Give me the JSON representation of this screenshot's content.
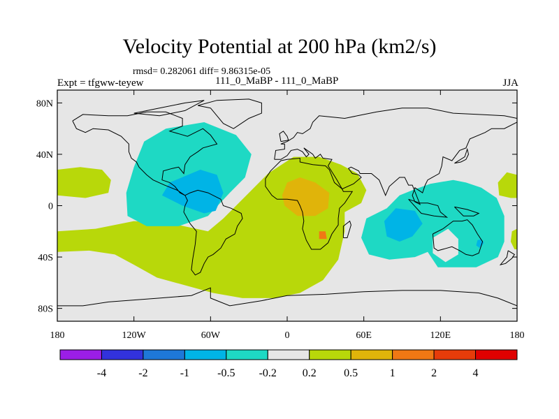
{
  "header": {
    "title": "Velocity Potential at 200 hPa (km2/s)",
    "stats": "rmsd= 0.282061 diff= 9.86315e-05",
    "experiment": "Expt = tfgww-teyew",
    "case": "111_0_MaBP - 111_0_MaBP",
    "season": "JJA"
  },
  "chart_data": {
    "type": "heatmap",
    "title": "Velocity Potential at 200 hPa (km2/s)",
    "xlabel": "",
    "ylabel": "",
    "xlim": [
      -180,
      180
    ],
    "ylim": [
      -90,
      90
    ],
    "x_ticks": [
      {
        "value": -180,
        "label": "180"
      },
      {
        "value": -120,
        "label": "120W"
      },
      {
        "value": -60,
        "label": "60W"
      },
      {
        "value": 0,
        "label": "0"
      },
      {
        "value": 60,
        "label": "60E"
      },
      {
        "value": 120,
        "label": "120E"
      },
      {
        "value": 180,
        "label": "180"
      }
    ],
    "y_ticks": [
      {
        "value": 80,
        "label": "80N"
      },
      {
        "value": 40,
        "label": "40N"
      },
      {
        "value": 0,
        "label": "0"
      },
      {
        "value": -40,
        "label": "40S"
      },
      {
        "value": -80,
        "label": "80S"
      }
    ],
    "colorbar": {
      "labels": [
        "-4",
        "-2",
        "-1",
        "-0.5",
        "-0.2",
        "0.2",
        "0.5",
        "1",
        "2",
        "4"
      ],
      "colors": [
        "#9b1ee6",
        "#3232dc",
        "#1e78d8",
        "#00b4e6",
        "#1ed9c4",
        "#e6e6e6",
        "#b8d80a",
        "#e0b40a",
        "#f07814",
        "#e63c0a",
        "#e00000"
      ]
    },
    "regions": [
      {
        "name": "pos-a",
        "color": "#b8d80a",
        "poly": [
          [
            -180,
            28
          ],
          [
            -162,
            30
          ],
          [
            -145,
            28
          ],
          [
            -138,
            20
          ],
          [
            -140,
            10
          ],
          [
            -158,
            6
          ],
          [
            -180,
            8
          ]
        ]
      },
      {
        "name": "pos-b",
        "color": "#b8d80a",
        "poly": [
          [
            -180,
            -20
          ],
          [
            -150,
            -18
          ],
          [
            -120,
            -12
          ],
          [
            -90,
            -14
          ],
          [
            -62,
            -20
          ],
          [
            -50,
            -10
          ],
          [
            -40,
            0
          ],
          [
            -30,
            10
          ],
          [
            -15,
            25
          ],
          [
            5,
            38
          ],
          [
            25,
            38
          ],
          [
            42,
            32
          ],
          [
            55,
            25
          ],
          [
            62,
            12
          ],
          [
            58,
            2
          ],
          [
            45,
            -5
          ],
          [
            45,
            -20
          ],
          [
            40,
            -42
          ],
          [
            28,
            -58
          ],
          [
            10,
            -68
          ],
          [
            -10,
            -72
          ],
          [
            -35,
            -72
          ],
          [
            -58,
            -68
          ],
          [
            -80,
            -62
          ],
          [
            -102,
            -56
          ],
          [
            -120,
            -46
          ],
          [
            -135,
            -38
          ],
          [
            -155,
            -35
          ],
          [
            -180,
            -36
          ]
        ]
      },
      {
        "name": "pos-c",
        "color": "#b8d80a",
        "poly": [
          [
            180,
            24
          ],
          [
            172,
            26
          ],
          [
            165,
            18
          ],
          [
            166,
            8
          ],
          [
            175,
            6
          ],
          [
            180,
            6
          ]
        ]
      },
      {
        "name": "pos-d",
        "color": "#b8d80a",
        "poly": [
          [
            180,
            -18
          ],
          [
            176,
            -20
          ],
          [
            175,
            -28
          ],
          [
            178,
            -34
          ],
          [
            180,
            -34
          ]
        ]
      },
      {
        "name": "neg-a",
        "color": "#1ed9c4",
        "poly": [
          [
            -112,
            50
          ],
          [
            -95,
            60
          ],
          [
            -65,
            65
          ],
          [
            -40,
            55
          ],
          [
            -28,
            40
          ],
          [
            -33,
            22
          ],
          [
            -45,
            10
          ],
          [
            -62,
            -8
          ],
          [
            -85,
            -16
          ],
          [
            -110,
            -16
          ],
          [
            -125,
            -8
          ],
          [
            -126,
            10
          ],
          [
            -120,
            30
          ]
        ]
      },
      {
        "name": "neg-b",
        "color": "#1ed9c4",
        "poly": [
          [
            62,
            -10
          ],
          [
            78,
            -2
          ],
          [
            88,
            8
          ],
          [
            98,
            12
          ],
          [
            112,
            17
          ],
          [
            130,
            20
          ],
          [
            140,
            18
          ],
          [
            152,
            14
          ],
          [
            164,
            6
          ],
          [
            170,
            -8
          ],
          [
            170,
            -28
          ],
          [
            165,
            -40
          ],
          [
            148,
            -48
          ],
          [
            118,
            -48
          ],
          [
            110,
            -36
          ],
          [
            100,
            -40
          ],
          [
            80,
            -42
          ],
          [
            64,
            -38
          ],
          [
            58,
            -25
          ]
        ]
      },
      {
        "name": "neg-c",
        "color": "#00b4e6",
        "poly": [
          [
            -92,
            18
          ],
          [
            -68,
            28
          ],
          [
            -55,
            24
          ],
          [
            -50,
            10
          ],
          [
            -56,
            -4
          ],
          [
            -65,
            -6
          ],
          [
            -82,
            0
          ],
          [
            -98,
            8
          ]
        ]
      },
      {
        "name": "neg-d",
        "color": "#00b4e6",
        "poly": [
          [
            85,
            -2
          ],
          [
            100,
            -4
          ],
          [
            106,
            -14
          ],
          [
            98,
            -24
          ],
          [
            88,
            -28
          ],
          [
            78,
            -24
          ],
          [
            76,
            -12
          ]
        ]
      },
      {
        "name": "neg-e",
        "color": "#00b4e6",
        "poly": [
          [
            149,
            -27
          ],
          [
            152,
            -26
          ],
          [
            154,
            -29
          ],
          [
            151,
            -33
          ],
          [
            148,
            -31
          ]
        ]
      },
      {
        "name": "hole-a",
        "color": "#e6e6e6",
        "poly": [
          [
            114,
            -25
          ],
          [
            126,
            -18
          ],
          [
            134,
            -26
          ],
          [
            134,
            -38
          ],
          [
            124,
            -44
          ],
          [
            114,
            -37
          ]
        ]
      },
      {
        "name": "warm-a",
        "color": "#e0b40a",
        "poly": [
          [
            0,
            18
          ],
          [
            10,
            22
          ],
          [
            22,
            18
          ],
          [
            33,
            10
          ],
          [
            32,
            -2
          ],
          [
            22,
            -8
          ],
          [
            8,
            -8
          ],
          [
            -2,
            0
          ],
          [
            -4,
            8
          ]
        ]
      },
      {
        "name": "warm-b",
        "color": "#f07814",
        "poly": [
          [
            25,
            -20
          ],
          [
            30,
            -20
          ],
          [
            31,
            -26
          ],
          [
            25,
            -26
          ]
        ]
      }
    ]
  }
}
